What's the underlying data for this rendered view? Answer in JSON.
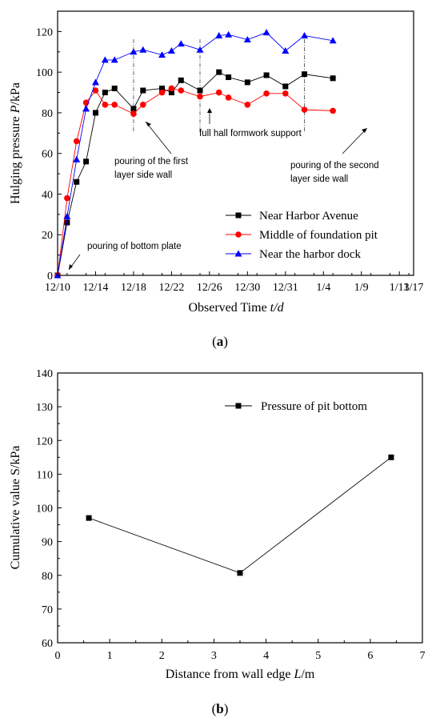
{
  "panel_labels": {
    "a": "a",
    "b": "b"
  },
  "chart_data": [
    {
      "type": "line",
      "xlabel_text": "Observed Time",
      "xlabel_var": "t/d",
      "ylabel_text": "Hulging pressure",
      "ylabel_var": "P",
      "ylabel_unit": "/kPa",
      "xlim": [
        0,
        37.5
      ],
      "ylim": [
        0,
        130
      ],
      "x_ticks": [
        {
          "pos": 0,
          "label": "12/10"
        },
        {
          "pos": 4,
          "label": "12/14"
        },
        {
          "pos": 8,
          "label": "12/18"
        },
        {
          "pos": 12,
          "label": "12/22"
        },
        {
          "pos": 16,
          "label": "12/26"
        },
        {
          "pos": 20,
          "label": "12/30"
        },
        {
          "pos": 24,
          "label": "12/31"
        },
        {
          "pos": 28,
          "label": "1/4"
        },
        {
          "pos": 32,
          "label": "1/9"
        },
        {
          "pos": 36,
          "label": "1/13"
        },
        {
          "pos": 40,
          "label": "1/17"
        }
      ],
      "y_ticks": [
        0,
        20,
        40,
        60,
        80,
        100,
        120
      ],
      "series": [
        {
          "name": "Near Harbor Avenue",
          "color": "#000000",
          "marker": "square",
          "x": [
            0,
            1,
            2,
            3,
            4,
            5,
            6,
            8,
            9,
            11,
            12,
            13,
            15,
            17,
            18,
            20,
            22,
            24,
            26,
            29
          ],
          "y": [
            0,
            26,
            46,
            56,
            80,
            90,
            92,
            82,
            91,
            92,
            90,
            96,
            91,
            100,
            97.5,
            95,
            98.5,
            93,
            99,
            97
          ]
        },
        {
          "name": "Middle of foundation pit",
          "color": "#ff0000",
          "marker": "circle",
          "x": [
            0,
            1,
            2,
            3,
            4,
            5,
            6,
            8,
            9,
            11,
            12,
            13,
            15,
            17,
            18,
            20,
            22,
            24,
            26,
            29
          ],
          "y": [
            0,
            38,
            66,
            85,
            91,
            84,
            84,
            79.5,
            84,
            90,
            92,
            91,
            88,
            90,
            87.5,
            84,
            89.5,
            89.5,
            81.5,
            81
          ]
        },
        {
          "name": "Near the harbor dock",
          "color": "#0000ff",
          "marker": "triangle",
          "x": [
            0,
            1,
            2,
            3,
            4,
            5,
            6,
            8,
            9,
            11,
            12,
            13,
            15,
            17,
            18,
            20,
            22,
            24,
            26,
            29
          ],
          "y": [
            0,
            29,
            57,
            82,
            95,
            106,
            106,
            110,
            111,
            108.5,
            110.5,
            114,
            111,
            118,
            118.5,
            116,
            119.5,
            110.5,
            118,
            115.5
          ]
        }
      ],
      "annotations": {
        "bottom_plate": "pouring of bottom plate",
        "first_wall_1": "pouring of the first",
        "first_wall_2": "layer side wall",
        "formwork": "full hall formwork support",
        "second_wall_1": "pouring of the second",
        "second_wall_2": "layer side wall"
      },
      "legend_position": "bottom-right"
    },
    {
      "type": "line",
      "xlabel_text": "Distance from wall edge",
      "xlabel_var": "L",
      "xlabel_unit": "/m",
      "ylabel": "Cumulative value S/kPa",
      "xlim": [
        0,
        7
      ],
      "ylim": [
        60,
        140
      ],
      "x_ticks": [
        0,
        1,
        2,
        3,
        4,
        5,
        6,
        7
      ],
      "y_ticks": [
        60,
        70,
        80,
        90,
        100,
        110,
        120,
        130,
        140
      ],
      "series": [
        {
          "name": "Pressure of pit bottom",
          "color": "#000000",
          "marker": "square",
          "x": [
            0.6,
            3.5,
            6.4
          ],
          "y": [
            97,
            80.7,
            115
          ]
        }
      ],
      "legend_position": "top-right"
    }
  ]
}
